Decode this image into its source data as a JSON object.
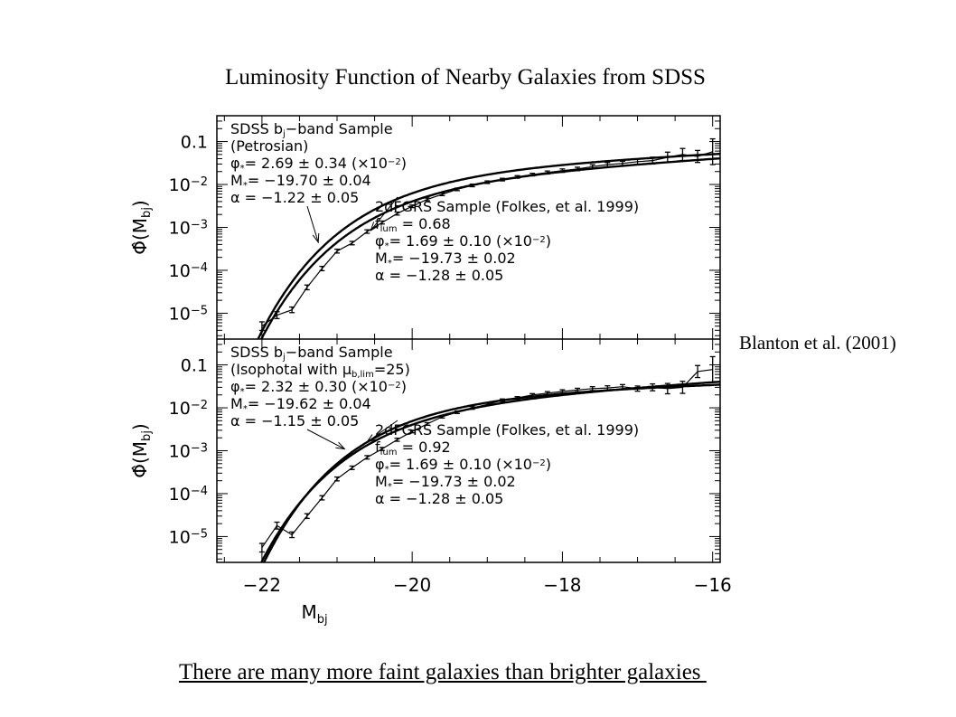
{
  "slide": {
    "title": "Luminosity Function of Nearby Galaxies from SDSS",
    "citation": "Blanton et al. (2001)",
    "conclusion": "There are many more faint galaxies than brighter galaxies "
  },
  "chart_data": {
    "type": "line",
    "x_axis": {
      "label": "M",
      "label_sub": "bj",
      "range": [
        -22.6,
        -15.9
      ],
      "ticks": [
        -22,
        -20,
        -18,
        -16
      ],
      "tick_labels": [
        "−22",
        "−20",
        "−18",
        "−16"
      ]
    },
    "y_axis": {
      "label": "Φ̂(M",
      "label_sub": "bj",
      "label_close": ")",
      "scale": "log",
      "tick_labels_left": [
        {
          "value": 0.1,
          "text": "0.1"
        },
        {
          "value": 0.01,
          "base": "10",
          "exp": "−2"
        },
        {
          "value": 0.001,
          "base": "10",
          "exp": "−3"
        },
        {
          "value": 0.0001,
          "base": "10",
          "exp": "−4"
        },
        {
          "value": 1e-05,
          "base": "10",
          "exp": "−5"
        }
      ]
    },
    "panels": [
      {
        "yrange": [
          2.5e-06,
          0.4
        ],
        "sdss_schechter": {
          "phi_star": 0.0269,
          "m_star": -19.7,
          "alpha": -1.22
        },
        "twodf_schechter": {
          "phi_star": 0.0169,
          "m_star": -19.73,
          "alpha": -1.28
        },
        "sdss_points": {
          "x": [
            -22.0,
            -21.8,
            -21.6,
            -21.4,
            -21.2,
            -21.0,
            -20.8,
            -20.6,
            -20.4,
            -20.2,
            -20.0,
            -19.8,
            -19.6,
            -19.4,
            -19.2,
            -19.0,
            -18.8,
            -18.6,
            -18.4,
            -18.2,
            -18.0,
            -17.8,
            -17.6,
            -17.4,
            -17.2,
            -17.0,
            -16.8,
            -16.6,
            -16.4,
            -16.2,
            -16.0
          ],
          "y": [
            5e-06,
            9e-06,
            1.2e-05,
            4e-05,
            0.00011,
            0.00028,
            0.00043,
            0.0008,
            0.0013,
            0.0021,
            0.0031,
            0.0045,
            0.0059,
            0.0077,
            0.0095,
            0.0113,
            0.013,
            0.015,
            0.017,
            0.019,
            0.021,
            0.023,
            0.026,
            0.029,
            0.031,
            0.034,
            0.036,
            0.043,
            0.05,
            0.045,
            0.058
          ],
          "err": [
            0.1,
            0.08,
            0.065,
            0.055,
            0.05,
            0.045,
            0.04,
            0.04,
            0.035,
            0.035,
            0.03,
            0.03,
            0.03,
            0.03,
            0.03,
            0.03,
            0.03,
            0.03,
            0.03,
            0.035,
            0.04,
            0.04,
            0.045,
            0.05,
            0.05,
            0.06,
            0.08,
            0.12,
            0.14,
            0.14,
            0.3
          ]
        },
        "legend_sdss": [
          {
            "text": "SDSS b",
            "sub": "j",
            "rest": "−band Sample"
          },
          {
            "text": "(Petrosian)"
          },
          {
            "text": "φ",
            "sub": "*",
            "rest": "=  2.69 ± 0.34 (×10",
            "sup": "−2",
            "tail": ")"
          },
          {
            "text": "M",
            "sub": "*",
            "rest": "= −19.70 ± 0.04"
          },
          {
            "text": "α  = −1.22 ± 0.05"
          }
        ],
        "legend_2df": [
          {
            "text": "2dFGRS Sample (Folkes, et al. 1999)"
          },
          {
            "text": "f",
            "sub": "lum",
            "rest": " = 0.68"
          },
          {
            "text": "φ",
            "sub": "*",
            "rest": "=  1.69 ± 0.10 (×10",
            "sup": "−2",
            "tail": ")"
          },
          {
            "text": "M",
            "sub": "*",
            "rest": "= −19.73 ± 0.02"
          },
          {
            "text": "α  = −1.28 ± 0.05"
          }
        ],
        "arrow_sdss_target": {
          "x": -21.25,
          "y": 0.00045
        },
        "arrow_2df_target": {
          "x": -20.55,
          "y": 0.00085
        }
      },
      {
        "yrange": [
          2.5e-06,
          0.4
        ],
        "sdss_schechter": {
          "phi_star": 0.0232,
          "m_star": -19.62,
          "alpha": -1.15
        },
        "twodf_schechter": {
          "phi_star": 0.0169,
          "m_star": -19.73,
          "alpha": -1.28
        },
        "sdss_points": {
          "x": [
            -22.0,
            -21.8,
            -21.6,
            -21.4,
            -21.2,
            -21.0,
            -20.8,
            -20.6,
            -20.4,
            -20.2,
            -20.0,
            -19.8,
            -19.6,
            -19.4,
            -19.2,
            -19.0,
            -18.8,
            -18.6,
            -18.4,
            -18.2,
            -18.0,
            -17.8,
            -17.6,
            -17.4,
            -17.2,
            -17.0,
            -16.8,
            -16.6,
            -16.4,
            -16.2,
            -16.0
          ],
          "y": [
            5.5e-06,
            1.8e-05,
            1.1e-05,
            3e-05,
            8e-05,
            0.00022,
            0.0004,
            0.0007,
            0.0011,
            0.0018,
            0.0028,
            0.0042,
            0.0062,
            0.0079,
            0.0099,
            0.012,
            0.015,
            0.017,
            0.02,
            0.022,
            0.024,
            0.026,
            0.028,
            0.029,
            0.031,
            0.028,
            0.03,
            0.028,
            0.03,
            0.07,
            0.078
          ],
          "err": [
            0.1,
            0.08,
            0.065,
            0.055,
            0.05,
            0.045,
            0.04,
            0.04,
            0.035,
            0.035,
            0.03,
            0.03,
            0.03,
            0.03,
            0.03,
            0.03,
            0.03,
            0.03,
            0.03,
            0.035,
            0.04,
            0.04,
            0.045,
            0.05,
            0.05,
            0.06,
            0.08,
            0.12,
            0.14,
            0.14,
            0.3
          ]
        },
        "legend_sdss": [
          {
            "text": "SDSS b",
            "sub": "j",
            "rest": "−band Sample"
          },
          {
            "text": "(Isophotal with μ",
            "sub": "b,lim",
            "rest": "=25)"
          },
          {
            "text": "φ",
            "sub": "*",
            "rest": "=  2.32 ± 0.30 (×10",
            "sup": "−2",
            "tail": ")"
          },
          {
            "text": "M",
            "sub": "*",
            "rest": "= −19.62 ± 0.04"
          },
          {
            "text": "α  = −1.15 ± 0.05"
          }
        ],
        "legend_2df": [
          {
            "text": "2dFGRS Sample (Folkes, et al. 1999)"
          },
          {
            "text": "f",
            "sub": "lum",
            "rest": " = 0.92"
          },
          {
            "text": "φ",
            "sub": "*",
            "rest": "=  1.69 ± 0.10 (×10",
            "sup": "−2",
            "tail": ")"
          },
          {
            "text": "M",
            "sub": "*",
            "rest": "= −19.73 ± 0.02"
          },
          {
            "text": "α  = −1.28 ± 0.05"
          }
        ],
        "arrow_sdss_target": {
          "x": -20.9,
          "y": 0.0011
        },
        "arrow_2df_target": {
          "x": -20.6,
          "y": 0.0016
        }
      }
    ]
  }
}
